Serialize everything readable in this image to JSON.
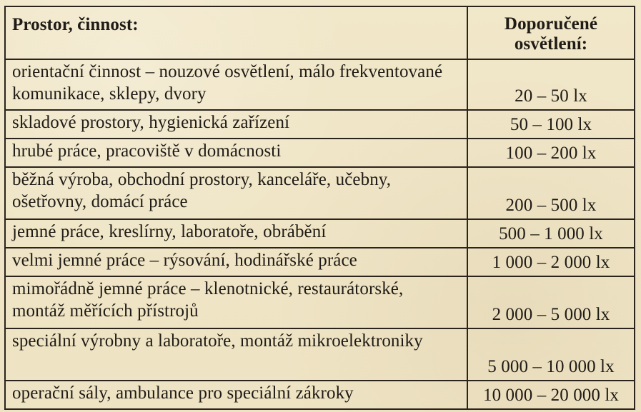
{
  "table": {
    "headers": {
      "left": "Prostor, činnost:",
      "right": "Doporučené osvětlení:"
    },
    "rows": [
      {
        "activity": "orientační činnost – nouzové osvětlení, málo frekventované komunikace, sklepy, dvory",
        "lighting": "20 – 50 lx"
      },
      {
        "activity": "skladové prostory, hygienická zařízení",
        "lighting": "50 – 100 lx"
      },
      {
        "activity": "hrubé práce, pracoviště v domácnosti",
        "lighting": "100 – 200 lx"
      },
      {
        "activity": "běžná výroba, obchodní prostory, kanceláře, učebny, ošetřovny, domácí práce",
        "lighting": "200 – 500 lx"
      },
      {
        "activity": "jemné práce, kreslírny, laboratoře, obrábění",
        "lighting": "500 – 1 000 lx"
      },
      {
        "activity": "velmi jemné práce – rýsování, hodinářské práce",
        "lighting": "1 000 – 2 000 lx"
      },
      {
        "activity": "mimořádně jemné práce – klenotnické, restaurátorské, montáž měřících přístrojů",
        "lighting": "2 000 – 5 000 lx"
      },
      {
        "activity": "speciální výrobny a laboratoře, montáž mikroelektroniky",
        "lighting": "5 000 – 10 000 lx"
      },
      {
        "activity": "operační sály, ambulance pro speciální zákroky",
        "lighting": "10 000 – 20 000 lx"
      }
    ]
  },
  "colors": {
    "paper": "#efe6c7",
    "ink": "#1f1b16",
    "rule": "#2a241d"
  }
}
